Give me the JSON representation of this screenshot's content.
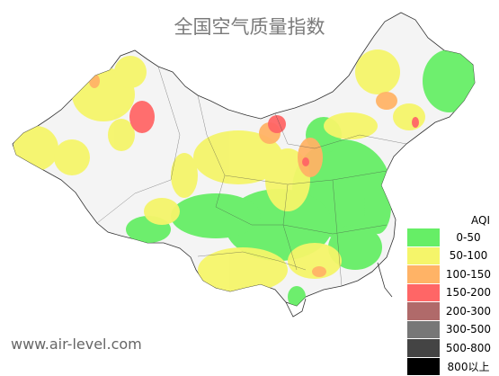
{
  "title": "全国空气质量指数",
  "website": "www.air-level.com",
  "legend": {
    "header": "AQI",
    "items": [
      {
        "range": "0-50",
        "color": "#66ee66"
      },
      {
        "range": "50-100",
        "color": "#f5f56a"
      },
      {
        "range": "100-150",
        "color": "#ffb366"
      },
      {
        "range": "150-200",
        "color": "#ff6666"
      },
      {
        "range": "200-300",
        "color": "#b06a6a"
      },
      {
        "range": "300-500",
        "color": "#777777"
      },
      {
        "range": "500-800",
        "color": "#444444"
      },
      {
        "range": "800以上",
        "color": "#000000"
      }
    ]
  },
  "map": {
    "region": "China",
    "boundary_color": "#333333",
    "background_color": "#ffffff"
  }
}
